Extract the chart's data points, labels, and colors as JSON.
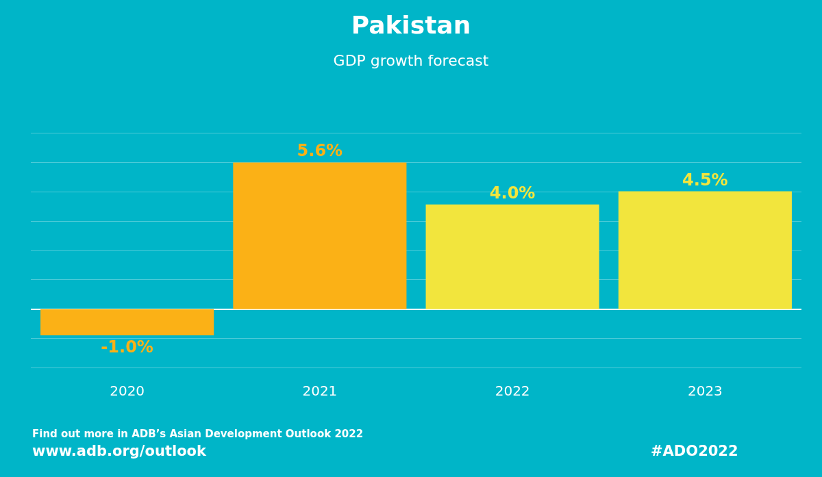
{
  "chart_data": {
    "type": "bar",
    "title": "Pakistan",
    "subtitle": "GDP growth forecast",
    "categories": [
      "2020",
      "2021",
      "2022",
      "2023"
    ],
    "values": [
      -1.0,
      5.6,
      4.0,
      4.5
    ],
    "colors": [
      "#fbb116",
      "#fbb116",
      "#f2e53d",
      "#f2e53d"
    ],
    "value_labels": [
      "-1.0%",
      "5.6%",
      "4.0%",
      "4.5%"
    ],
    "yticks": [
      {
        "value": -2.24,
        "label": null
      },
      {
        "value": -1.12,
        "label": null
      },
      {
        "value": 0,
        "label": null
      },
      {
        "value": 1.12,
        "label": null
      },
      {
        "value": 2.24,
        "label": null
      },
      {
        "value": 3.36,
        "label": null
      },
      {
        "value": 4.48,
        "label": null
      },
      {
        "value": 5.6,
        "label": null
      },
      {
        "value": 6.72,
        "label": null
      }
    ],
    "grid": "y",
    "tick_labels": "x",
    "legend": false,
    "annotations": [
      "Find out more in ADB’s Asian Development Outlook 2022",
      "www.adb.org/outlook",
      "#ADO2022"
    ]
  }
}
